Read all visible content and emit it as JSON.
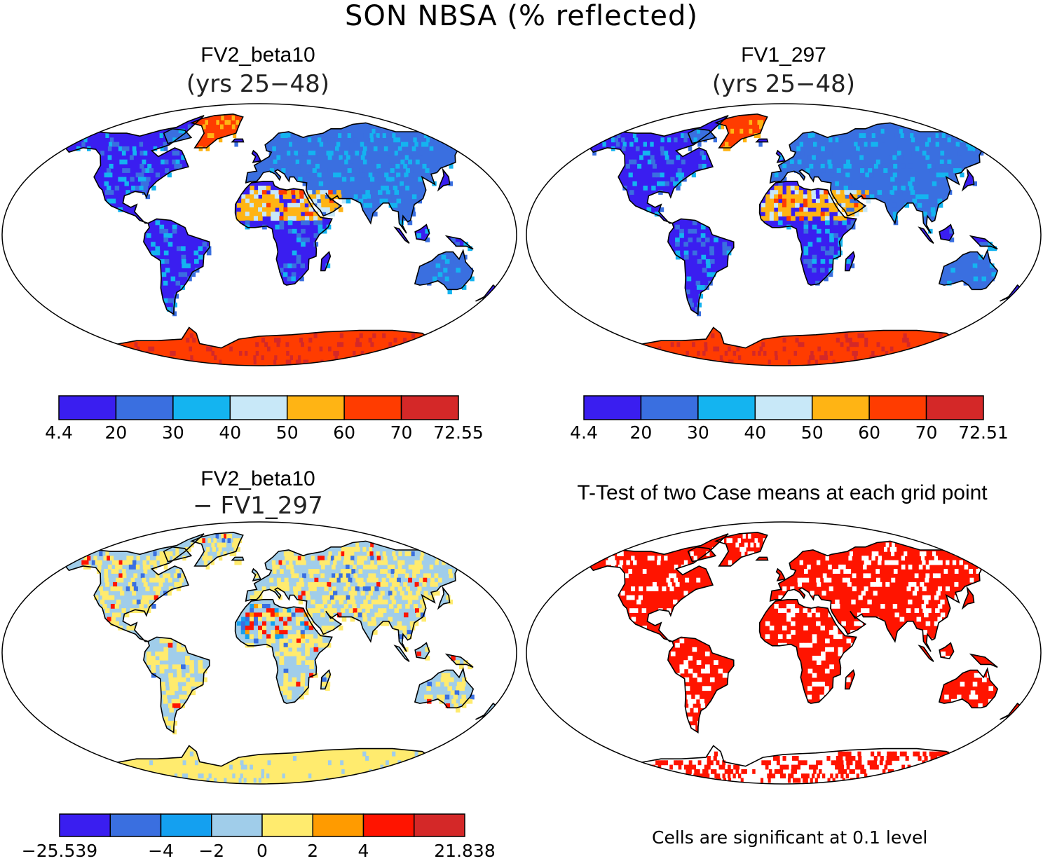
{
  "title": "SON NBSA (% reflected)",
  "panels": [
    {
      "id": "fv2",
      "title": "FV2_beta10",
      "subtitle": "(yrs 25−48)",
      "ramp": "main"
    },
    {
      "id": "fv1",
      "title": "FV1_297",
      "subtitle": "(yrs 25−48)",
      "ramp": "main"
    },
    {
      "id": "diff",
      "title": "FV2_beta10",
      "subtitle": "− FV1_297",
      "ramp": "diff"
    },
    {
      "id": "ttest",
      "title": "T-Test of two Case means at each grid point",
      "subtitle": "",
      "ramp": "sig"
    }
  ],
  "colorbars": [
    {
      "panel": "fv2",
      "colors": [
        "#3a1ef0",
        "#3a6fe0",
        "#14b4f0",
        "#c8e8f8",
        "#ffb414",
        "#ff3c00",
        "#d42828"
      ],
      "labels": [
        "4.4",
        "20",
        "30",
        "40",
        "50",
        "60",
        "70",
        "72.55"
      ]
    },
    {
      "panel": "fv1",
      "colors": [
        "#3a1ef0",
        "#3a6fe0",
        "#14b4f0",
        "#c8e8f8",
        "#ffb414",
        "#ff3c00",
        "#d42828"
      ],
      "labels": [
        "4.4",
        "20",
        "30",
        "40",
        "50",
        "60",
        "70",
        "72.51"
      ]
    },
    {
      "panel": "diff",
      "colors": [
        "#3a1ef0",
        "#3a6fe0",
        "#14a0f0",
        "#a0cdea",
        "#ffeb6e",
        "#ff9b00",
        "#ff1400",
        "#d42828"
      ],
      "labels": [
        "−25.539",
        "",
        "−4",
        "−2",
        "0",
        "2",
        "4",
        "",
        "21.838"
      ]
    }
  ],
  "footnote": "Cells are significant at 0.1 level"
}
